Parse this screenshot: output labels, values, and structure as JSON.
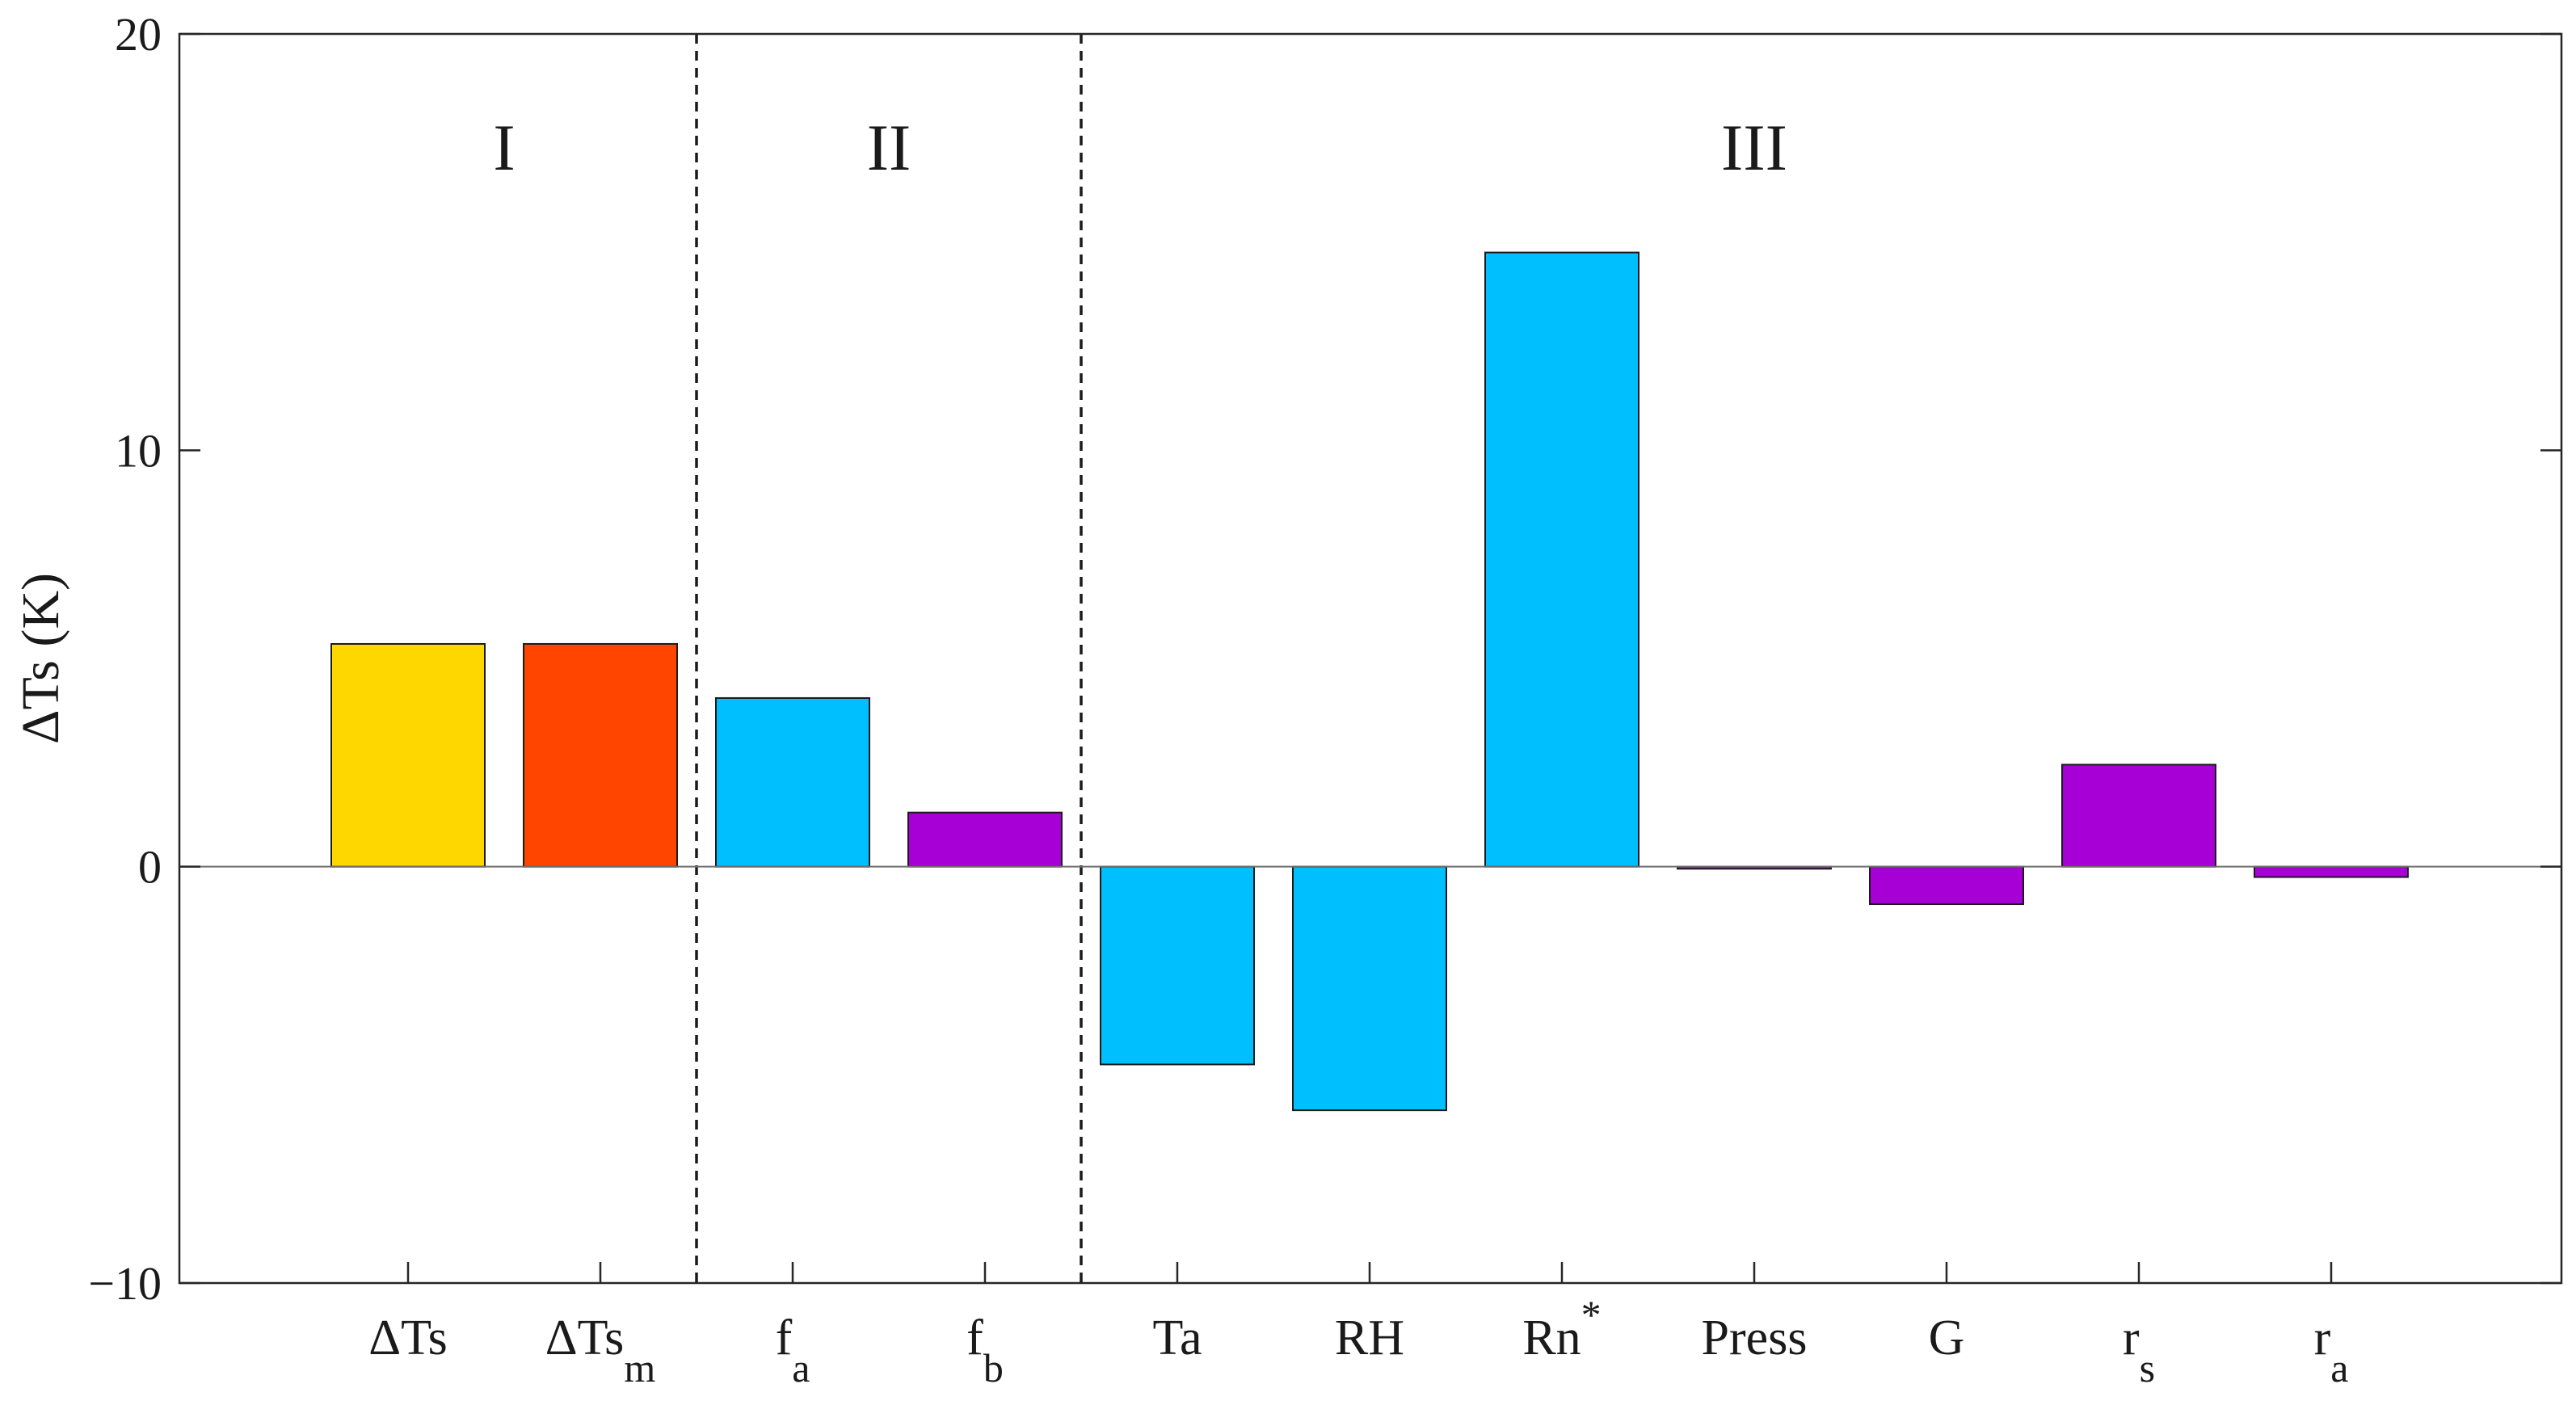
{
  "chart_data": {
    "type": "bar",
    "ylabel": "ΔTs (K)",
    "ylim": [
      -10,
      20
    ],
    "yticks": [
      -10,
      0,
      10,
      20
    ],
    "ytick_labels": [
      "−10",
      "0",
      "10",
      "20"
    ],
    "grid": false,
    "regions": [
      {
        "label": "I",
        "first": 0,
        "last": 1
      },
      {
        "label": "II",
        "first": 2,
        "last": 3
      },
      {
        "label": "III",
        "first": 4,
        "last": 10
      }
    ],
    "categories": [
      {
        "base": "ΔTs",
        "sub": "",
        "sup": ""
      },
      {
        "base": "ΔTs",
        "sub": "m",
        "sup": ""
      },
      {
        "base": "f",
        "sub": "a",
        "sup": ""
      },
      {
        "base": "f",
        "sub": "b",
        "sup": ""
      },
      {
        "base": "Ta",
        "sub": "",
        "sup": ""
      },
      {
        "base": "RH",
        "sub": "",
        "sup": ""
      },
      {
        "base": "Rn",
        "sub": "",
        "sup": "*"
      },
      {
        "base": "Press",
        "sub": "",
        "sup": ""
      },
      {
        "base": "G",
        "sub": "",
        "sup": ""
      },
      {
        "base": "r",
        "sub": "s",
        "sup": ""
      },
      {
        "base": "r",
        "sub": "a",
        "sup": ""
      }
    ],
    "values": [
      5.35,
      5.35,
      4.05,
      1.3,
      -4.75,
      -5.85,
      14.75,
      -0.05,
      -0.9,
      2.45,
      -0.25
    ],
    "bar_colors": [
      "#FFD700",
      "#FF4500",
      "#00BFFF",
      "#A600D6",
      "#00BFFF",
      "#00BFFF",
      "#00BFFF",
      "#A600D6",
      "#A600D6",
      "#A600D6",
      "#A600D6"
    ]
  }
}
